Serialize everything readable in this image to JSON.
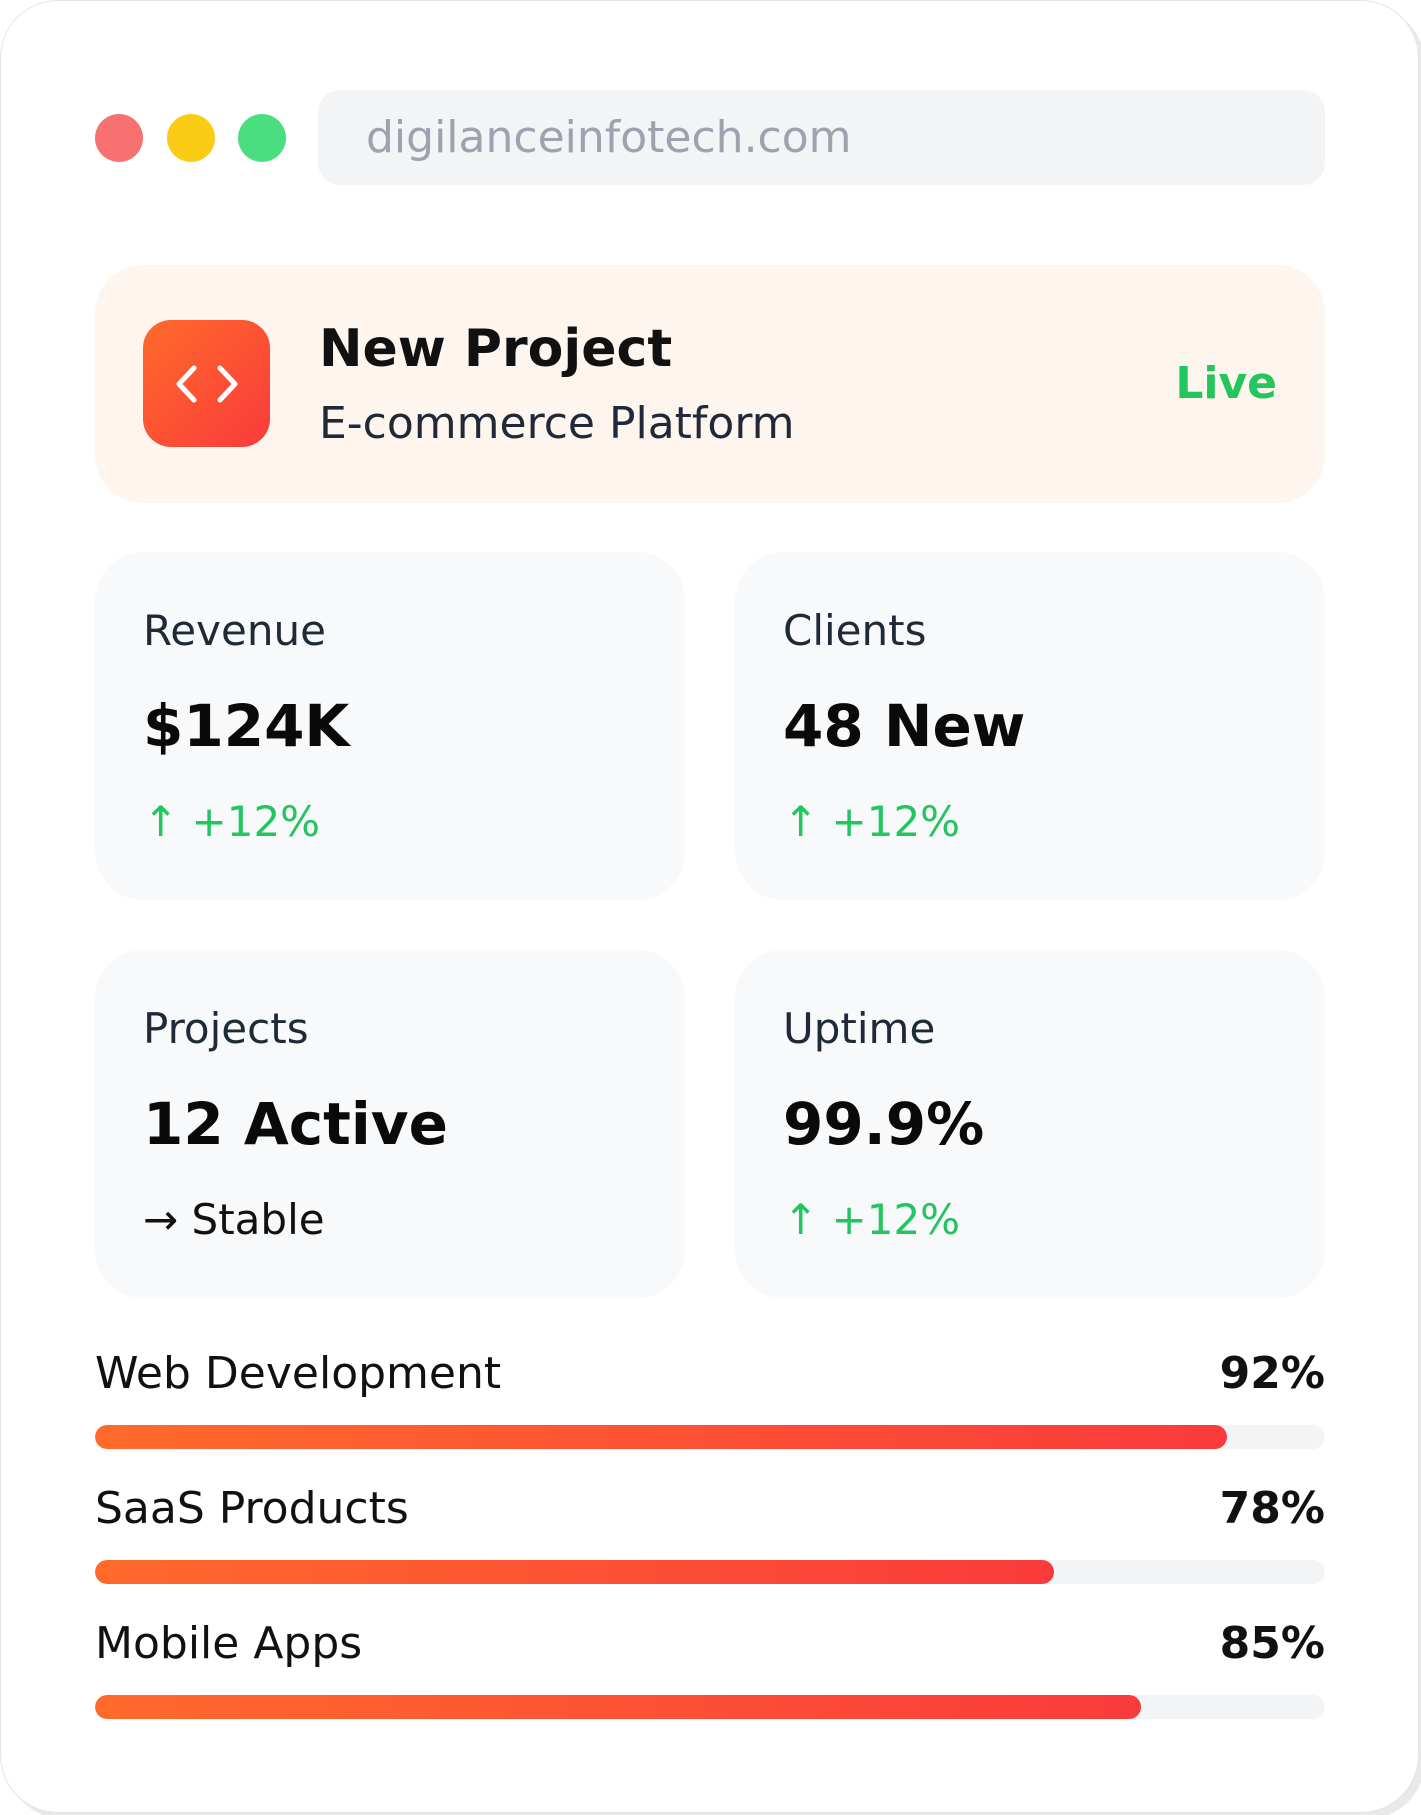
{
  "window": {
    "controls": [
      {
        "name": "close",
        "color": "#f87171"
      },
      {
        "name": "minimize",
        "color": "#facc15"
      },
      {
        "name": "maximize",
        "color": "#4ade80"
      }
    ],
    "url": "digilanceinfotech.com"
  },
  "project": {
    "icon": "code-icon",
    "title": "New Project",
    "subtitle": "E-commerce Platform",
    "status": "Live",
    "status_color": "#22c55e",
    "accent_color": "#f93b3b"
  },
  "stats": [
    {
      "label": "Revenue",
      "value": "$124K",
      "trend": "↑ +12%",
      "trend_direction": "up"
    },
    {
      "label": "Clients",
      "value": "48 New",
      "trend": "↑ +12%",
      "trend_direction": "up"
    },
    {
      "label": "Projects",
      "value": "12 Active",
      "trend": "→ Stable",
      "trend_direction": "flat"
    },
    {
      "label": "Uptime",
      "value": "99.9%",
      "trend": "↑ +12%",
      "trend_direction": "up"
    }
  ],
  "progress": [
    {
      "label": "Web Development",
      "percent_label": "92%",
      "value": 92
    },
    {
      "label": "SaaS Products",
      "percent_label": "78%",
      "value": 78
    },
    {
      "label": "Mobile Apps",
      "percent_label": "85%",
      "value": 85
    }
  ]
}
